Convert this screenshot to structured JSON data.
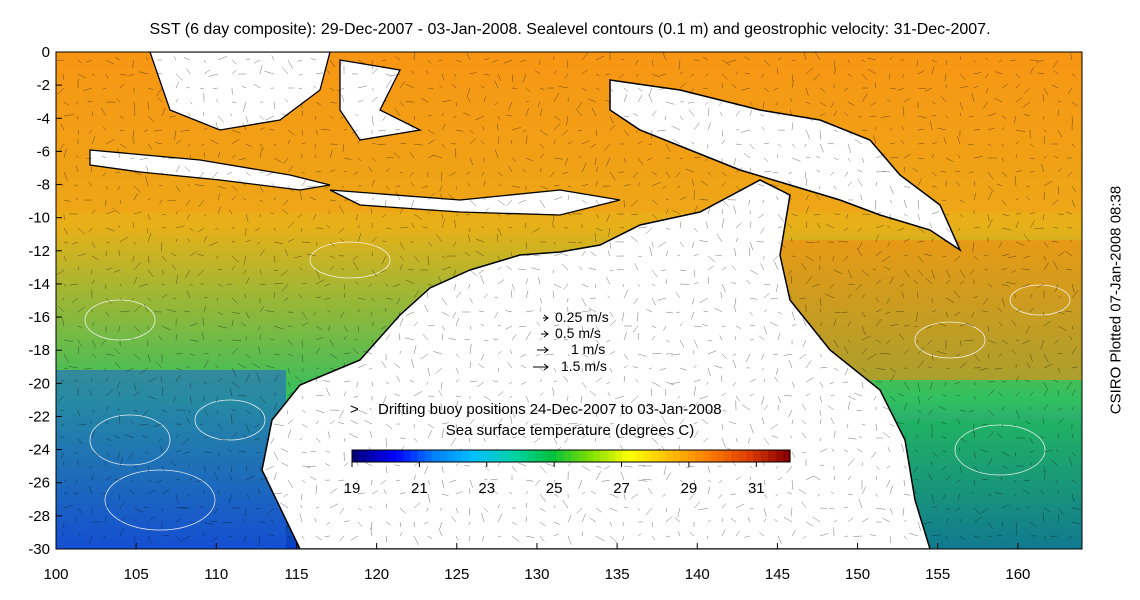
{
  "title": "SST (6 day composite): 29-Dec-2007 - 03-Jan-2008. Sealevel contours (0.1 m) and geostrophic velocity: 31-Dec-2007.",
  "credit": "CSIRO Plotted 07-Jan-2008 08:38",
  "axes": {
    "x_ticks": [
      "100",
      "105",
      "110",
      "115",
      "120",
      "125",
      "130",
      "135",
      "140",
      "145",
      "150",
      "155",
      "160"
    ],
    "y_ticks": [
      "0",
      "-2",
      "-4",
      "-6",
      "-8",
      "-10",
      "-12",
      "-14",
      "-16",
      "-18",
      "-20",
      "-22",
      "-24",
      "-26",
      "-28",
      "-30"
    ],
    "xlim": [
      100,
      164
    ],
    "ylim": [
      -30,
      0
    ]
  },
  "velocity_legend": [
    {
      "label": "0.25 m/s",
      "speed": 0.25
    },
    {
      "label": "0.5 m/s",
      "speed": 0.5
    },
    {
      "label": "1 m/s",
      "speed": 1
    },
    {
      "label": "1.5 m/s",
      "speed": 1.5
    }
  ],
  "buoy_legend": {
    "symbol": ">",
    "text": "Drifting buoy positions 24-Dec-2007 to 03-Jan-2008",
    "color": "#ff33ff"
  },
  "colorbar": {
    "title": "Sea surface temperature (degrees C)",
    "ticks": [
      "19",
      "21",
      "23",
      "25",
      "27",
      "29",
      "31"
    ],
    "range": [
      19,
      32
    ],
    "colors": [
      "#00007f",
      "#0000ff",
      "#007fff",
      "#00bfff",
      "#00d4aa",
      "#00c040",
      "#7fdf00",
      "#ffff00",
      "#ffbf00",
      "#ff7f00",
      "#e04000",
      "#8b0000"
    ]
  },
  "colors": {
    "land": "#ffffff",
    "coastline": "#000000",
    "contour": "#ffffff",
    "vector": "#000000"
  }
}
